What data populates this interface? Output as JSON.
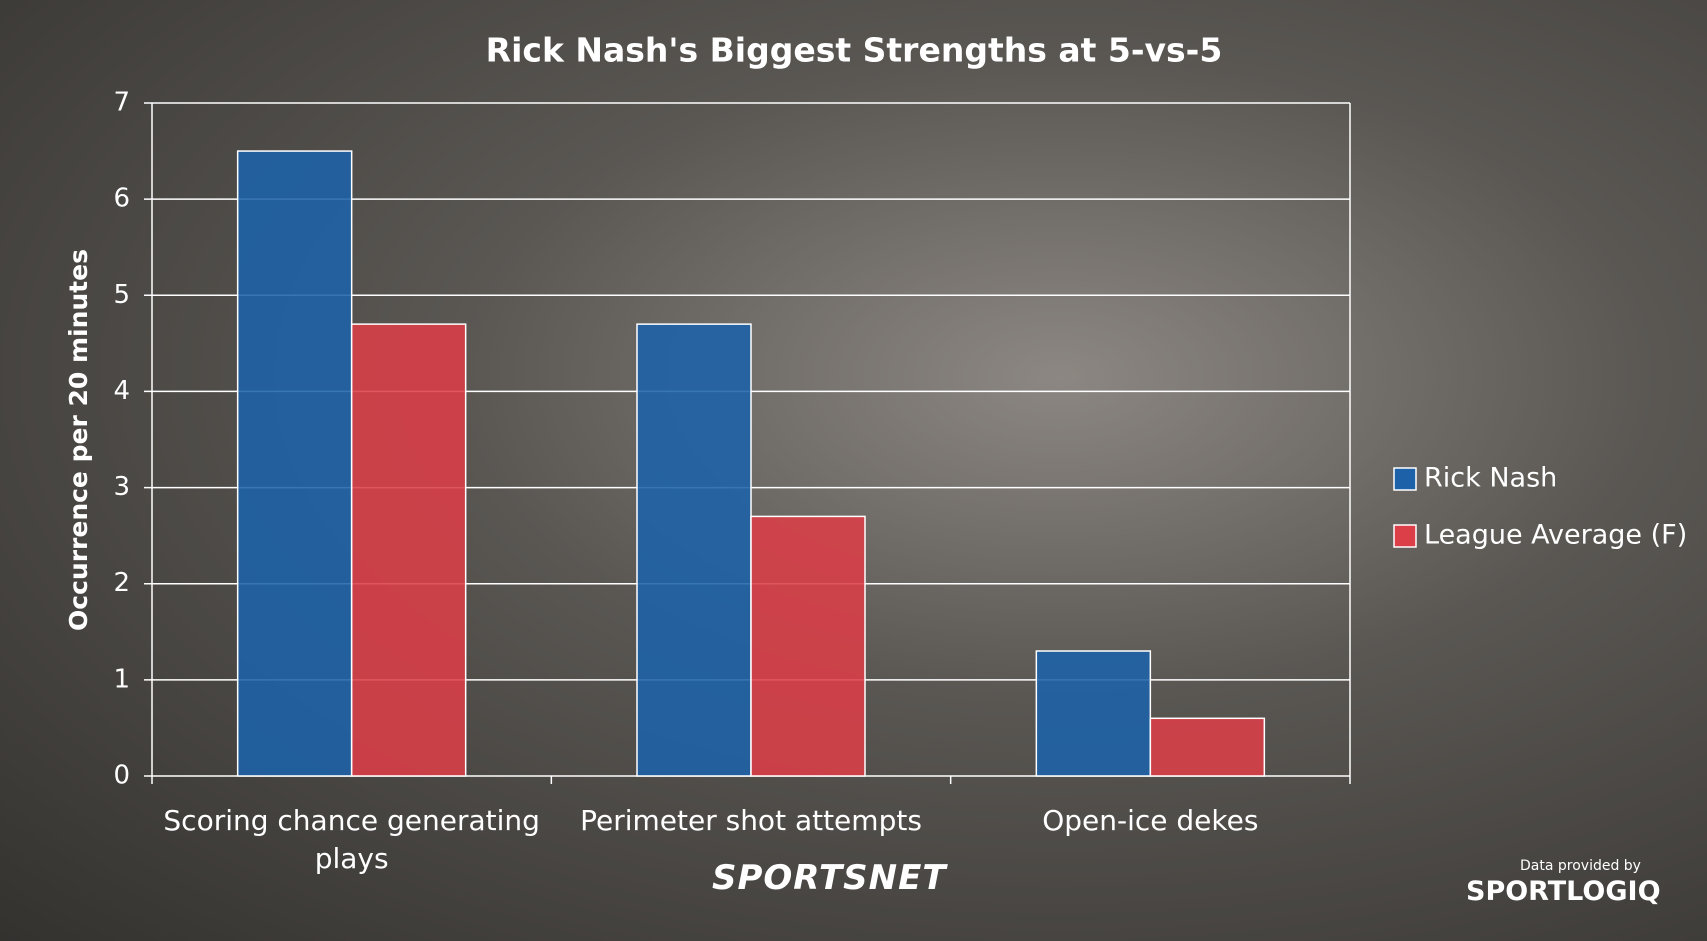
{
  "chart_data": {
    "type": "bar",
    "title": "Rick Nash's Biggest Strengths at 5-vs-5",
    "y_label": "Occurrence per 20 minutes",
    "categories": [
      "Scoring chance generating plays",
      "Perimeter shot attempts",
      "Open-ice dekes"
    ],
    "series": [
      {
        "name": "Rick Nash",
        "color": "#1d62a8",
        "values": [
          6.5,
          4.7,
          1.3
        ]
      },
      {
        "name": "League Average (F)",
        "color": "#dc3f48",
        "values": [
          4.7,
          2.7,
          0.6
        ]
      }
    ],
    "ylim": [
      0,
      7
    ],
    "yticks": [
      0,
      1,
      2,
      3,
      4,
      5,
      6,
      7
    ],
    "grid": true,
    "legend": "right"
  },
  "branding": {
    "broadcaster": "SPORTSNET",
    "credit": "Data provided by",
    "provider": "SPORTLOGIQ"
  }
}
